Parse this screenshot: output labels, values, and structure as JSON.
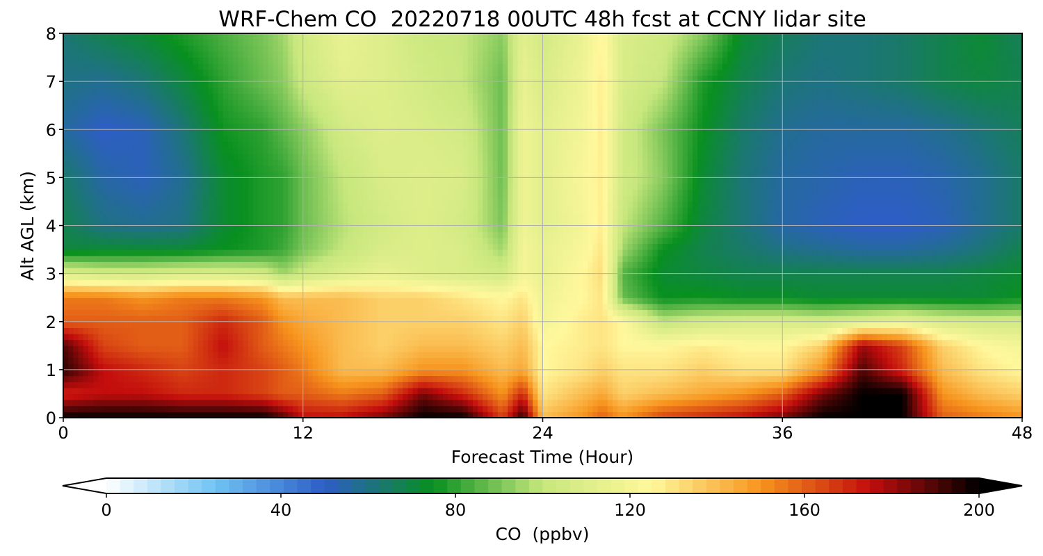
{
  "chart_data": {
    "type": "heatmap",
    "title": "WRF-Chem CO  20220718 00UTC 48h fcst at CCNY lidar site",
    "xlabel": "Forecast Time (Hour)",
    "ylabel": "Alt AGL (km)",
    "xlim": [
      0,
      48
    ],
    "ylim": [
      0,
      8
    ],
    "xticks": [
      0,
      12,
      24,
      36,
      48
    ],
    "yticks": [
      0,
      1,
      2,
      3,
      4,
      5,
      6,
      7,
      8
    ],
    "grid": true,
    "colorbar": {
      "label": "CO  (ppbv)",
      "min": 0,
      "max": 200,
      "ticks": [
        0,
        40,
        80,
        120,
        160,
        200
      ],
      "extend": "both",
      "colors": [
        "#ffffff",
        "#6fc3f3",
        "#2e5dc6",
        "#08901f",
        "#c7e77d",
        "#fff89c",
        "#f7941d",
        "#c30d0d",
        "#000000"
      ]
    },
    "x": [
      0,
      2,
      4,
      6,
      8,
      10,
      11,
      12,
      14,
      16,
      18,
      20,
      22,
      23,
      24,
      26,
      27,
      28,
      30,
      32,
      34,
      36,
      38,
      40,
      42,
      44,
      46,
      48
    ],
    "y": [
      0,
      0.5,
      1,
      1.5,
      2,
      2.5,
      3,
      3.5,
      4,
      5,
      6,
      7,
      8
    ],
    "z_ppbv": [
      [
        200,
        200,
        200,
        200,
        200,
        200,
        190,
        175,
        175,
        185,
        200,
        200,
        165,
        195,
        140,
        150,
        160,
        150,
        165,
        170,
        175,
        185,
        200,
        200,
        200,
        160,
        155,
        150
      ],
      [
        170,
        175,
        175,
        170,
        170,
        165,
        160,
        160,
        155,
        160,
        185,
        170,
        150,
        170,
        130,
        140,
        145,
        135,
        140,
        145,
        150,
        160,
        185,
        200,
        200,
        150,
        140,
        135
      ],
      [
        195,
        175,
        170,
        165,
        170,
        165,
        160,
        155,
        140,
        140,
        150,
        150,
        140,
        145,
        125,
        130,
        135,
        130,
        130,
        135,
        130,
        130,
        150,
        190,
        170,
        140,
        130,
        125
      ],
      [
        190,
        165,
        160,
        160,
        175,
        160,
        155,
        150,
        140,
        135,
        140,
        140,
        135,
        140,
        125,
        128,
        130,
        125,
        125,
        128,
        125,
        125,
        135,
        180,
        165,
        135,
        125,
        120
      ],
      [
        160,
        160,
        160,
        160,
        170,
        160,
        150,
        145,
        140,
        135,
        135,
        135,
        130,
        135,
        120,
        128,
        130,
        125,
        100,
        105,
        108,
        108,
        105,
        110,
        115,
        108,
        105,
        105
      ],
      [
        155,
        155,
        150,
        155,
        155,
        150,
        140,
        140,
        140,
        135,
        135,
        130,
        125,
        130,
        118,
        125,
        130,
        88,
        75,
        76,
        74,
        74,
        72,
        72,
        72,
        72,
        72,
        75
      ],
      [
        110,
        105,
        105,
        108,
        108,
        105,
        95,
        102,
        110,
        115,
        110,
        108,
        105,
        120,
        115,
        125,
        132,
        85,
        72,
        70,
        68,
        68,
        68,
        68,
        68,
        68,
        70,
        72
      ],
      [
        70,
        72,
        72,
        72,
        75,
        78,
        82,
        90,
        100,
        108,
        110,
        108,
        95,
        120,
        115,
        122,
        130,
        95,
        75,
        68,
        64,
        60,
        58,
        56,
        56,
        58,
        62,
        68
      ],
      [
        68,
        60,
        58,
        60,
        72,
        78,
        80,
        88,
        98,
        105,
        110,
        105,
        90,
        118,
        112,
        120,
        128,
        100,
        85,
        70,
        62,
        55,
        52,
        50,
        50,
        52,
        58,
        64
      ],
      [
        64,
        55,
        52,
        58,
        72,
        78,
        80,
        88,
        100,
        108,
        110,
        108,
        88,
        118,
        112,
        122,
        128,
        105,
        92,
        72,
        62,
        56,
        54,
        52,
        52,
        54,
        58,
        64
      ],
      [
        56,
        50,
        52,
        62,
        76,
        80,
        86,
        92,
        105,
        110,
        108,
        105,
        88,
        118,
        112,
        120,
        128,
        105,
        90,
        75,
        64,
        58,
        56,
        56,
        56,
        58,
        62,
        66
      ],
      [
        60,
        58,
        62,
        70,
        80,
        88,
        92,
        102,
        112,
        110,
        105,
        100,
        88,
        115,
        108,
        118,
        128,
        108,
        100,
        78,
        68,
        62,
        60,
        62,
        64,
        68,
        70,
        68
      ],
      [
        62,
        68,
        72,
        78,
        84,
        90,
        95,
        105,
        115,
        110,
        102,
        100,
        92,
        112,
        105,
        116,
        126,
        108,
        104,
        92,
        72,
        66,
        62,
        62,
        64,
        68,
        72,
        66
      ]
    ]
  }
}
